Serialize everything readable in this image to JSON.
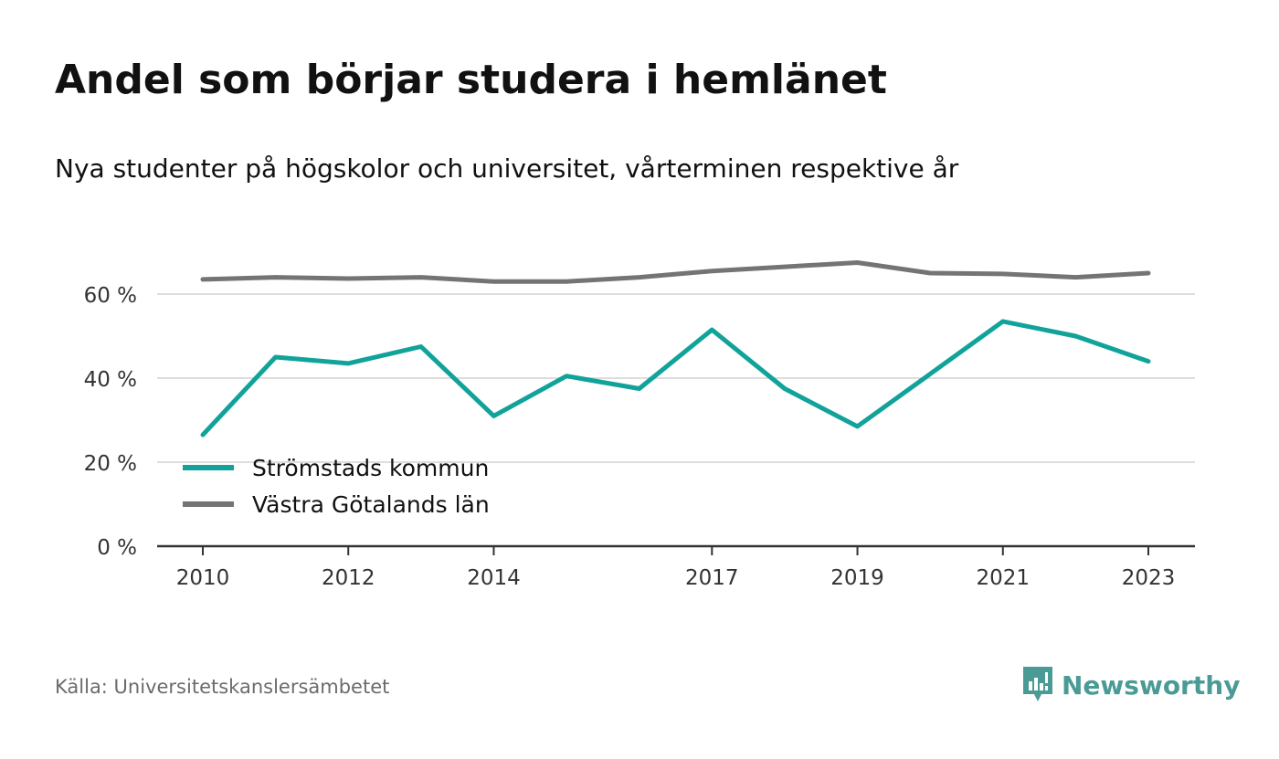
{
  "header": {
    "title": "Andel som börjar studera i hemlänet",
    "subtitle": "Nya studenter på högskolor och universitet, vårterminen respektive år"
  },
  "footer": {
    "source": "Källa: Universitetskanslersämbetet",
    "brand": "Newsworthy"
  },
  "colors": {
    "series1": "#11a39a",
    "series2": "#747474",
    "grid": "#dddddd",
    "axis": "#333333",
    "brand": "#4a9b95"
  },
  "chart_data": {
    "type": "line",
    "x": [
      2010,
      2011,
      2012,
      2013,
      2014,
      2015,
      2016,
      2017,
      2018,
      2019,
      2020,
      2021,
      2022,
      2023
    ],
    "xticks": [
      "2010",
      "2012",
      "2014",
      "2017",
      "2019",
      "2021",
      "2023"
    ],
    "yticks": [
      "0 %",
      "20 %",
      "40 %",
      "60 %"
    ],
    "ylim": [
      0,
      70
    ],
    "grid": true,
    "legend_position": "bottom-left",
    "series": [
      {
        "name": "Strömstads kommun",
        "values": [
          26.5,
          45,
          43.5,
          47.5,
          31,
          40.5,
          37.5,
          51.5,
          37.5,
          28.5,
          41,
          53.5,
          50,
          44
        ]
      },
      {
        "name": "Västra Götalands län",
        "values": [
          63.5,
          64,
          63.7,
          64,
          63,
          63,
          64,
          65.5,
          66.5,
          67.5,
          65,
          64.8,
          64,
          65
        ]
      }
    ]
  }
}
